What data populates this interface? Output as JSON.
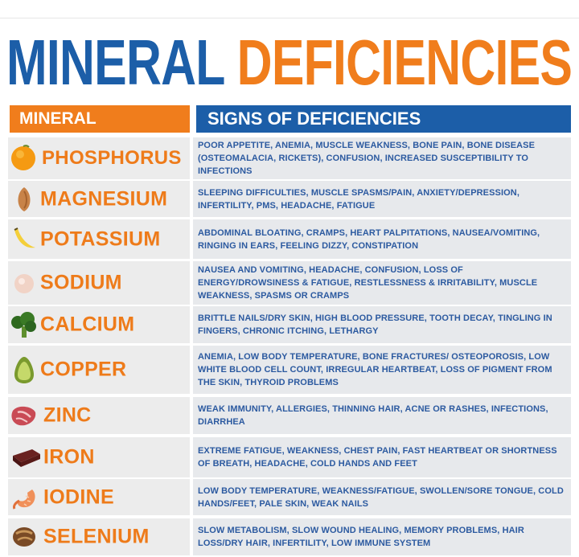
{
  "title": {
    "word1": "MINERAL",
    "word2": "DEFICIENCIES"
  },
  "header": {
    "mineral": "MINERAL",
    "signs": "SIGNS OF DEFICIENCIES"
  },
  "rows": [
    {
      "mineral": "PHOSPHORUS",
      "icon": "orange-icon",
      "signs": "POOR APPETITE, ANEMIA, MUSCLE WEAKNESS, BONE PAIN, BONE DISEASE (OSTEOMALACIA, RICKETS), CONFUSION, INCREASED SUSCEPTIBILITY TO INFECTIONS"
    },
    {
      "mineral": "MAGNESIUM",
      "icon": "almond-icon",
      "signs": "SLEEPING DIFFICULTIES, MUSCLE SPASMS/PAIN, ANXIETY/DEPRESSION, INFERTILITY, PMS, HEADACHE, FATIGUE"
    },
    {
      "mineral": "POTASSIUM",
      "icon": "banana-icon",
      "signs": "ABDOMINAL BLOATING, CRAMPS, HEART PALPITATIONS, NAUSEA/VOMITING, RINGING IN EARS, FEELING DIZZY, CONSTIPATION"
    },
    {
      "mineral": "SODIUM",
      "icon": "salt-icon",
      "signs": "NAUSEA AND VOMITING, HEADACHE, CONFUSION, LOSS OF ENERGY/DROWSINESS & FATIGUE, RESTLESSNESS & IRRITABILITY, MUSCLE WEAKNESS, SPASMS OR CRAMPS"
    },
    {
      "mineral": "CALCIUM",
      "icon": "broccoli-icon",
      "signs": "BRITTLE NAILS/DRY SKIN, HIGH BLOOD PRESSURE, TOOTH DECAY, TINGLING IN FINGERS, CHRONIC ITCHING, LETHARGY"
    },
    {
      "mineral": "COPPER",
      "icon": "avocado-icon",
      "signs": "ANEMIA, LOW BODY TEMPERATURE, BONE FRACTURES/ OSTEOPOROSIS, LOW WHITE BLOOD CELL COUNT, IRREGULAR HEARTBEAT, LOSS OF PIGMENT FROM THE SKIN, THYROID PROBLEMS"
    },
    {
      "mineral": "ZINC",
      "icon": "meat-icon",
      "signs": "WEAK IMMUNITY, ALLERGIES, THINNING HAIR, ACNE OR RASHES, INFECTIONS, DIARRHEA"
    },
    {
      "mineral": "IRON",
      "icon": "chocolate-icon",
      "signs": "EXTREME FATIGUE, WEAKNESS, CHEST PAIN, FAST HEARTBEAT OR SHORTNESS OF BREATH, HEADACHE, COLD HANDS AND FEET"
    },
    {
      "mineral": "IODINE",
      "icon": "shrimp-icon",
      "signs": "LOW BODY TEMPERATURE, WEAKNESS/FATIGUE, SWOLLEN/SORE TONGUE, COLD HANDS/FEET, PALE SKIN, WEAK NAILS"
    },
    {
      "mineral": "SELENIUM",
      "icon": "brazil-nut-icon",
      "signs": "SLOW METABOLISM, SLOW WOUND HEALING, MEMORY PROBLEMS, HAIR LOSS/DRY HAIR, INFERTILITY, LOW IMMUNE SYSTEM"
    }
  ]
}
